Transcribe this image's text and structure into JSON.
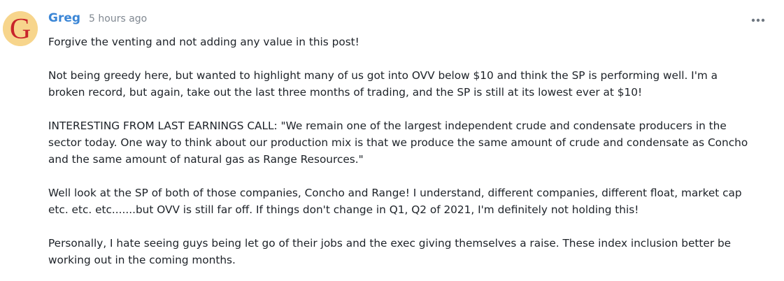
{
  "comment": {
    "author": "Greg",
    "timestamp": "5 hours ago",
    "avatar_letter": "G",
    "avatar_icon": "letter-g-avatar",
    "more_icon": "more-horizontal-icon",
    "colors": {
      "author": "#3b86d6",
      "avatar_bg": "#f7d58c",
      "avatar_letter": "#c8242b",
      "timestamp": "#808891",
      "text": "#1d2228"
    },
    "paragraphs": [
      "Forgive the venting and not adding any value in this post!",
      "Not being greedy here, but wanted to highlight many of us got into OVV below $10 and think the SP is performing well. I'm a broken record, but again, take out the last three months of trading, and the SP is still at its lowest ever at $10!",
      "INTERESTING FROM LAST EARNINGS CALL: \"We remain one of the largest independent crude and condensate producers in the sector today. One way to think about our production mix is that we produce the same amount of crude and condensate as Concho and the same amount of natural gas as Range Resources.\"",
      "Well look at the SP of both of those companies, Concho and Range! I understand, different companies, different float, market cap etc. etc. etc.......but OVV is still far off. If things don't change in Q1, Q2 of 2021, I'm definitely not holding this!",
      "Personally, I hate seeing guys being let go of their jobs and the exec giving themselves a raise. These index inclusion better be working out in the coming months."
    ]
  }
}
